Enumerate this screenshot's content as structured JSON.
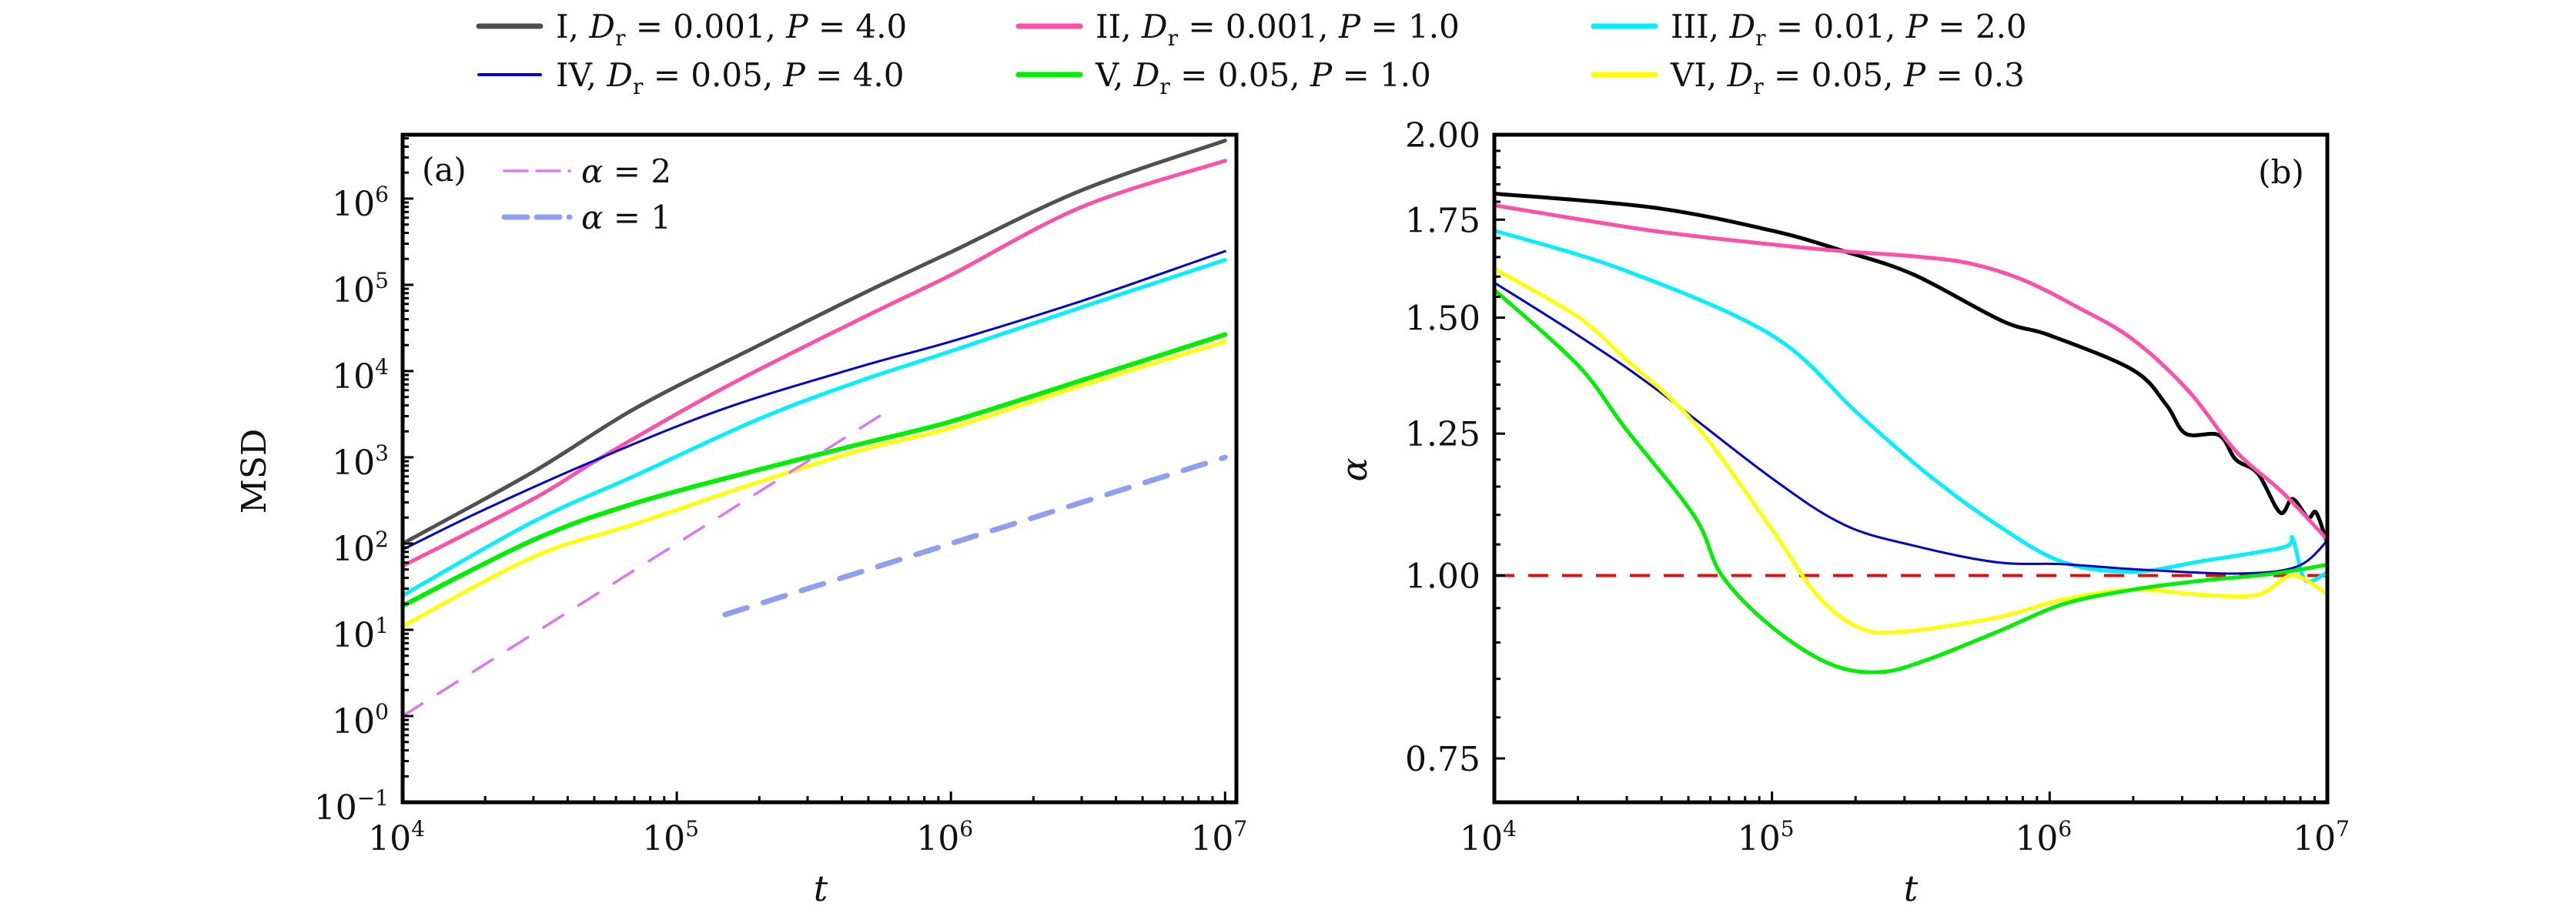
{
  "figure": {
    "legend": {
      "entries": [
        {
          "id": "I",
          "roman": "I",
          "dr_label": "D",
          "dr_sub": "r",
          "dr_value": "0.001",
          "p_label": "P",
          "p_value": "4.0",
          "color": "#505050"
        },
        {
          "id": "II",
          "roman": "II",
          "dr_label": "D",
          "dr_sub": "r",
          "dr_value": "0.001",
          "p_label": "P",
          "p_value": "1.0",
          "color": "#ff4fa9"
        },
        {
          "id": "III",
          "roman": "III",
          "dr_label": "D",
          "dr_sub": "r",
          "dr_value": "0.01",
          "p_label": "P",
          "p_value": "2.0",
          "color": "#00f0ff"
        },
        {
          "id": "IV",
          "roman": "IV",
          "dr_label": "D",
          "dr_sub": "r",
          "dr_value": "0.05",
          "p_label": "P",
          "p_value": "4.0",
          "color": "#0000cc"
        },
        {
          "id": "V",
          "roman": "V",
          "dr_label": "D",
          "dr_sub": "r",
          "dr_value": "0.05",
          "p_label": "P",
          "p_value": "1.0",
          "color": "#00ee00"
        },
        {
          "id": "VI",
          "roman": "VI",
          "dr_label": "D",
          "dr_sub": "r",
          "dr_value": "0.05",
          "p_label": "P",
          "p_value": "0.3",
          "color": "#ffff00"
        }
      ],
      "placement": "top-center, above both panels"
    }
  },
  "chart_data": [
    {
      "type": "line",
      "panel_tag": "(a)",
      "title": "",
      "xlabel": "t",
      "ylabel": "MSD",
      "xscale": "log",
      "yscale": "log",
      "xlim": [
        10000,
        11000000
      ],
      "ylim": [
        0.1,
        5500000
      ],
      "x_ticks": [
        {
          "value": 10000,
          "base": "10",
          "exp": "4"
        },
        {
          "value": 100000,
          "base": "10",
          "exp": "5"
        },
        {
          "value": 1000000,
          "base": "10",
          "exp": "6"
        },
        {
          "value": 10000000,
          "base": "10",
          "exp": "7"
        }
      ],
      "y_ticks": [
        {
          "value": 0.1,
          "base": "10",
          "exp": "−1"
        },
        {
          "value": 1,
          "base": "10",
          "exp": "0"
        },
        {
          "value": 10,
          "base": "10",
          "exp": "1"
        },
        {
          "value": 100,
          "base": "10",
          "exp": "2"
        },
        {
          "value": 1000,
          "base": "10",
          "exp": "3"
        },
        {
          "value": 10000,
          "base": "10",
          "exp": "4"
        },
        {
          "value": 100000,
          "base": "10",
          "exp": "5"
        },
        {
          "value": 1000000,
          "base": "10",
          "exp": "6"
        }
      ],
      "grid": false,
      "series": [
        {
          "name": "I",
          "color": "#505050",
          "width": 5,
          "points": [
            [
              10000,
              100
            ],
            [
              30000,
              680
            ],
            [
              70800,
              3720
            ],
            [
              200000,
              20000
            ],
            [
              478000,
              79400
            ],
            [
              1000000,
              240000
            ],
            [
              3000000,
              1250000
            ],
            [
              10000000,
              4700000
            ]
          ]
        },
        {
          "name": "II",
          "color": "#ff4fa9",
          "width": 5,
          "points": [
            [
              10000,
              55
            ],
            [
              30000,
              330
            ],
            [
              52500,
              977
            ],
            [
              150000,
              6500
            ],
            [
              478000,
              41700
            ],
            [
              1000000,
              130000
            ],
            [
              3000000,
              800000
            ],
            [
              10000000,
              2750000
            ]
          ]
        },
        {
          "name": "IV",
          "color": "#0000cc",
          "width": 3,
          "points": [
            [
              10000,
              85
            ],
            [
              20000,
              250
            ],
            [
              52500,
              977
            ],
            [
              150000,
              3700
            ],
            [
              478000,
              11500
            ],
            [
              1000000,
              22000
            ],
            [
              3000000,
              65000
            ],
            [
              10000000,
              245000
            ]
          ]
        },
        {
          "name": "III",
          "color": "#00f0ff",
          "width": 5,
          "points": [
            [
              10000,
              25
            ],
            [
              30000,
              180
            ],
            [
              70800,
              617
            ],
            [
              200000,
              2800
            ],
            [
              478000,
              7900
            ],
            [
              1000000,
              17000
            ],
            [
              3000000,
              55000
            ],
            [
              10000000,
              195000
            ]
          ]
        },
        {
          "name": "V",
          "color": "#00ee00",
          "width": 6,
          "points": [
            [
              10000,
              19
            ],
            [
              30000,
              110
            ],
            [
              70800,
              295
            ],
            [
              200000,
              720
            ],
            [
              478000,
              1450
            ],
            [
              1000000,
              2600
            ],
            [
              3000000,
              7800
            ],
            [
              10000000,
              26500
            ]
          ]
        },
        {
          "name": "VI",
          "color": "#ffff00",
          "width": 5,
          "points": [
            [
              10000,
              11
            ],
            [
              30000,
              70
            ],
            [
              70800,
              170
            ],
            [
              200000,
              520
            ],
            [
              478000,
              1230
            ],
            [
              1000000,
              2200
            ],
            [
              3000000,
              6800
            ],
            [
              10000000,
              22000
            ]
          ]
        }
      ],
      "reference_lines": [
        {
          "name": "alpha=2",
          "label_symbol": "α",
          "label_value": "2",
          "color": "#dd77ee",
          "style": "dashed-thin",
          "points": [
            [
              10000,
              1
            ],
            [
              600000,
              3600
            ]
          ]
        },
        {
          "name": "alpha=1",
          "label_symbol": "α",
          "label_value": "1",
          "color": "#8f9ef0",
          "style": "dashed-thick",
          "points": [
            [
              150000,
              15
            ],
            [
              10000000,
              1000
            ]
          ]
        }
      ],
      "legend": {
        "placement": "top-left",
        "entries": [
          "α = 2",
          "α = 1"
        ]
      }
    },
    {
      "type": "line",
      "panel_tag": "(b)",
      "title": "",
      "xlabel": "t",
      "ylabel": "α",
      "xscale": "log",
      "yscale": "log",
      "xlim": [
        10000,
        10000000
      ],
      "ylim": [
        0.7,
        2.0
      ],
      "x_ticks": [
        {
          "value": 10000,
          "base": "10",
          "exp": "4"
        },
        {
          "value": 100000,
          "base": "10",
          "exp": "5"
        },
        {
          "value": 1000000,
          "base": "10",
          "exp": "6"
        },
        {
          "value": 10000000,
          "base": "10",
          "exp": "7"
        }
      ],
      "y_ticks": [
        {
          "value": 0.75,
          "label": "0.75"
        },
        {
          "value": 1.0,
          "label": "1.00"
        },
        {
          "value": 1.25,
          "label": "1.25"
        },
        {
          "value": 1.5,
          "label": "1.50"
        },
        {
          "value": 1.75,
          "label": "1.75"
        },
        {
          "value": 2.0,
          "label": "2.00"
        }
      ],
      "grid": false,
      "series": [
        {
          "name": "I",
          "color": "#000000",
          "width": 5,
          "points": [
            [
              10000,
              1.823
            ],
            [
              37000,
              1.784
            ],
            [
              100000,
              1.72
            ],
            [
              182000,
              1.665
            ],
            [
              324000,
              1.605
            ],
            [
              676000,
              1.492
            ],
            [
              1000000,
              1.459
            ],
            [
              2000000,
              1.381
            ],
            [
              2630000,
              1.308
            ],
            [
              3090000,
              1.25
            ],
            [
              4070000,
              1.247
            ],
            [
              4680000,
              1.2
            ],
            [
              5620000,
              1.174
            ],
            [
              6760000,
              1.104
            ],
            [
              7500000,
              1.128
            ],
            [
              8510000,
              1.095
            ],
            [
              9120000,
              1.104
            ],
            [
              10000000,
              1.051
            ]
          ]
        },
        {
          "name": "II",
          "color": "#ff4fa9",
          "width": 5,
          "points": [
            [
              10000,
              1.79
            ],
            [
              37000,
              1.72
            ],
            [
              100000,
              1.683
            ],
            [
              182000,
              1.665
            ],
            [
              324000,
              1.652
            ],
            [
              513000,
              1.634
            ],
            [
              794000,
              1.593
            ],
            [
              1260000,
              1.525
            ],
            [
              2000000,
              1.449
            ],
            [
              3160000,
              1.337
            ],
            [
              4680000,
              1.216
            ],
            [
              6920000,
              1.139
            ],
            [
              10000000,
              1.058
            ]
          ]
        },
        {
          "name": "III",
          "color": "#00f0ff",
          "width": 5,
          "points": [
            [
              10000,
              1.72
            ],
            [
              29500,
              1.616
            ],
            [
              100000,
              1.459
            ],
            [
              204000,
              1.29
            ],
            [
              363000,
              1.173
            ],
            [
              646000,
              1.083
            ],
            [
              1120000,
              1.021
            ],
            [
              2000000,
              1.006
            ],
            [
              3550000,
              1.023
            ],
            [
              6920000,
              1.045
            ],
            [
              7500000,
              1.06
            ],
            [
              8320000,
              0.993
            ],
            [
              10000000,
              1.005
            ]
          ]
        },
        {
          "name": "IV",
          "color": "#0000cc",
          "width": 3,
          "points": [
            [
              10000,
              1.585
            ],
            [
              20000,
              1.459
            ],
            [
              37000,
              1.347
            ],
            [
              100000,
              1.165
            ],
            [
              182000,
              1.083
            ],
            [
              324000,
              1.048
            ],
            [
              646000,
              1.021
            ],
            [
              1120000,
              1.018
            ],
            [
              2000000,
              1.01
            ],
            [
              4680000,
              1.003
            ],
            [
              7760000,
              1.014
            ],
            [
              10000000,
              1.056
            ]
          ]
        },
        {
          "name": "VI",
          "color": "#ffff00",
          "width": 5,
          "points": [
            [
              10000,
              1.62
            ],
            [
              20000,
              1.502
            ],
            [
              29500,
              1.407
            ],
            [
              52500,
              1.271
            ],
            [
              100000,
              1.075
            ],
            [
              145000,
              0.97
            ],
            [
              204000,
              0.922
            ],
            [
              288000,
              0.915
            ],
            [
              646000,
              0.936
            ],
            [
              1120000,
              0.963
            ],
            [
              2000000,
              0.978
            ],
            [
              3550000,
              0.97
            ],
            [
              5620000,
              0.97
            ],
            [
              7500000,
              1.0
            ],
            [
              10000000,
              0.971
            ]
          ]
        },
        {
          "name": "V",
          "color": "#00ee00",
          "width": 5,
          "points": [
            [
              10000,
              1.567
            ],
            [
              20000,
              1.392
            ],
            [
              29500,
              1.262
            ],
            [
              52500,
              1.098
            ],
            [
              66000,
              1.0
            ],
            [
              100000,
              0.922
            ],
            [
              162000,
              0.87
            ],
            [
              245000,
              0.859
            ],
            [
              363000,
              0.876
            ],
            [
              646000,
              0.915
            ],
            [
              1120000,
              0.956
            ],
            [
              2000000,
              0.978
            ],
            [
              3550000,
              0.992
            ],
            [
              6170000,
              1.002
            ],
            [
              10000000,
              1.017
            ]
          ]
        }
      ],
      "reference_lines": [
        {
          "name": "alpha=1 reference",
          "color": "#dd1111",
          "style": "dashed",
          "value": 1.0
        }
      ]
    }
  ]
}
